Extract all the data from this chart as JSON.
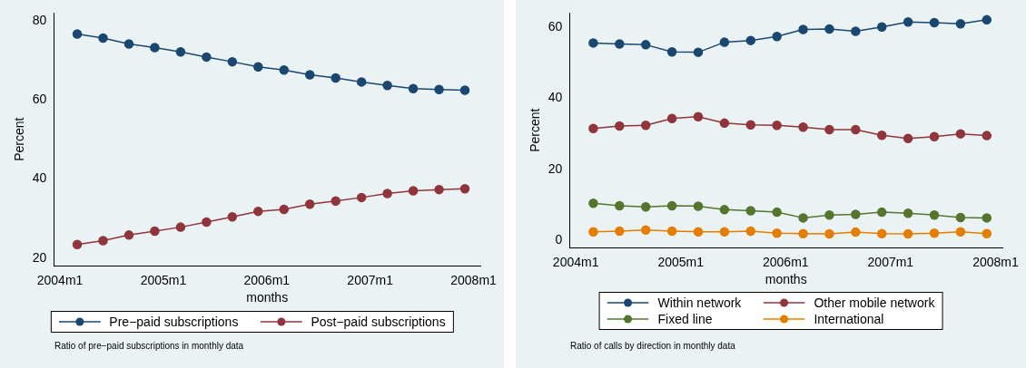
{
  "chart_data": [
    {
      "type": "line",
      "xlabel": "months",
      "ylabel": "Percent",
      "marker": "circle",
      "legend": "bottom",
      "grid": false,
      "annotations": [
        "Ratio of pre−paid subscriptions in monthly data"
      ],
      "x": [
        "2004-03",
        "2004-06",
        "2004-09",
        "2004-12",
        "2005-03",
        "2005-06",
        "2005-09",
        "2005-12",
        "2006-03",
        "2006-06",
        "2006-09",
        "2006-12",
        "2007-03",
        "2007-06",
        "2007-09",
        "2007-12"
      ],
      "xlim": [
        "2003-12-10",
        "2008-01-25"
      ],
      "xticks": [
        {
          "value": "2004-01",
          "label": "2004m1"
        },
        {
          "value": "2005-01",
          "label": "2005m1"
        },
        {
          "value": "2006-01",
          "label": "2006m1"
        },
        {
          "value": "2007-01",
          "label": "2007m1"
        },
        {
          "value": "2008-01",
          "label": "2008m1"
        }
      ],
      "ylim": [
        18,
        82
      ],
      "yticks": [
        20,
        40,
        60,
        80
      ],
      "series": [
        {
          "name": "Pre−paid subscriptions",
          "color": "#1a476f",
          "values": [
            76.6,
            75.6,
            74.1,
            73.2,
            72.1,
            70.8,
            69.6,
            68.3,
            67.5,
            66.3,
            65.5,
            64.5,
            63.6,
            62.8,
            62.6,
            62.4
          ]
        },
        {
          "name": "Post−paid subscriptions",
          "color": "#90353b",
          "values": [
            23.4,
            24.4,
            25.8,
            26.8,
            27.8,
            29.1,
            30.4,
            31.8,
            32.3,
            33.6,
            34.4,
            35.3,
            36.3,
            37.0,
            37.3,
            37.5
          ]
        }
      ]
    },
    {
      "type": "line",
      "xlabel": "months",
      "ylabel": "Percent",
      "marker": "circle",
      "legend": "bottom",
      "grid": false,
      "annotations": [
        "Ratio of calls by direction in monthly data"
      ],
      "x": [
        "2004-03",
        "2004-06",
        "2004-09",
        "2004-12",
        "2005-03",
        "2005-06",
        "2005-09",
        "2005-12",
        "2006-03",
        "2006-06",
        "2006-09",
        "2006-12",
        "2007-03",
        "2007-06",
        "2007-09",
        "2007-12"
      ],
      "xlim": [
        "2003-12-10",
        "2008-01-25"
      ],
      "xticks": [
        {
          "value": "2004-01",
          "label": "2004m1"
        },
        {
          "value": "2005-01",
          "label": "2005m1"
        },
        {
          "value": "2006-01",
          "label": "2006m1"
        },
        {
          "value": "2007-01",
          "label": "2007m1"
        },
        {
          "value": "2008-01",
          "label": "2008m1"
        }
      ],
      "ylim": [
        -2,
        64
      ],
      "yticks": [
        0,
        20,
        40,
        60
      ],
      "series": [
        {
          "name": "Within network",
          "color": "#1a476f",
          "values": [
            55.5,
            55.2,
            55.0,
            53.0,
            52.9,
            55.7,
            56.2,
            57.3,
            59.3,
            59.4,
            58.8,
            60.0,
            61.4,
            61.2,
            60.9,
            62.0
          ]
        },
        {
          "name": "Other mobile network",
          "color": "#90353b",
          "values": [
            31.5,
            32.2,
            32.4,
            34.3,
            34.8,
            33.0,
            32.5,
            32.4,
            31.9,
            31.2,
            31.2,
            29.6,
            28.7,
            29.2,
            30.0,
            29.5
          ]
        },
        {
          "name": "Fixed line",
          "color": "#55752f",
          "values": [
            10.5,
            9.8,
            9.5,
            9.8,
            9.7,
            8.7,
            8.4,
            8.0,
            6.4,
            7.2,
            7.4,
            8.0,
            7.7,
            7.2,
            6.5,
            6.4
          ]
        },
        {
          "name": "International",
          "color": "#e37e00",
          "values": [
            2.5,
            2.7,
            3.0,
            2.7,
            2.5,
            2.5,
            2.7,
            2.1,
            2.0,
            1.9,
            2.4,
            2.0,
            1.9,
            2.1,
            2.5,
            2.0
          ]
        }
      ]
    }
  ]
}
